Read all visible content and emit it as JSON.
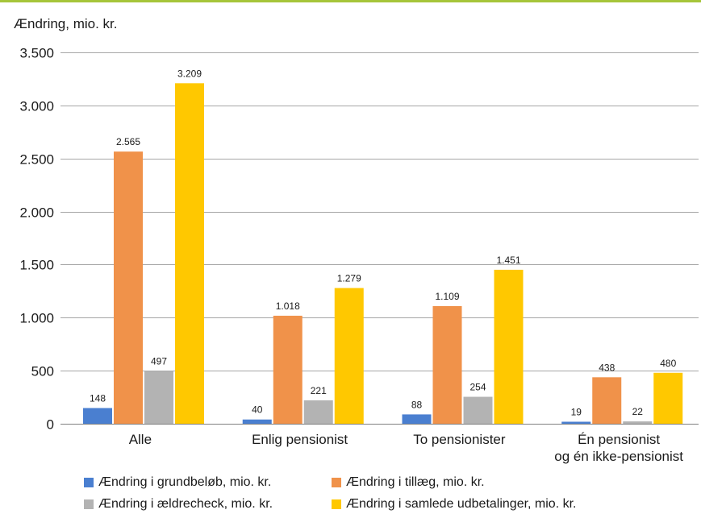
{
  "chart_data": {
    "type": "bar",
    "ylabel": "Ændring, mio. kr.",
    "ylim": [
      0,
      3500
    ],
    "ytick_labels": [
      "0",
      "500",
      "1.000",
      "1.500",
      "2.000",
      "2.500",
      "3.000",
      "3.500"
    ],
    "ytick_values": [
      0,
      500,
      1000,
      1500,
      2000,
      2500,
      3000,
      3500
    ],
    "categories": [
      "Alle",
      "Enlig pensionist",
      "To pensionister",
      "Én pensionist\nog én ikke-pensionist"
    ],
    "series": [
      {
        "name": "Ændring i grundbeløb, mio. kr.",
        "color": "#4a7fd0",
        "values": [
          148,
          40,
          88,
          19
        ],
        "labels": [
          "148",
          "40",
          "88",
          "19"
        ]
      },
      {
        "name": "Ændring i tillæg, mio. kr.",
        "color": "#f0924a",
        "values": [
          2565,
          1018,
          1109,
          438
        ],
        "labels": [
          "2.565",
          "1.018",
          "1.109",
          "438"
        ]
      },
      {
        "name": "Ændring i ældrecheck, mio. kr.",
        "color": "#b3b3b3",
        "values": [
          497,
          221,
          254,
          22
        ],
        "labels": [
          "497",
          "221",
          "254",
          "22"
        ]
      },
      {
        "name": "Ændring i samlede udbetalinger, mio. kr.",
        "color": "#ffc800",
        "values": [
          3209,
          1279,
          1451,
          480
        ],
        "labels": [
          "3.209",
          "1.279",
          "1.451",
          "480"
        ]
      }
    ],
    "grid": true,
    "legend_position": "bottom"
  },
  "accent_color": "#a6c53a"
}
